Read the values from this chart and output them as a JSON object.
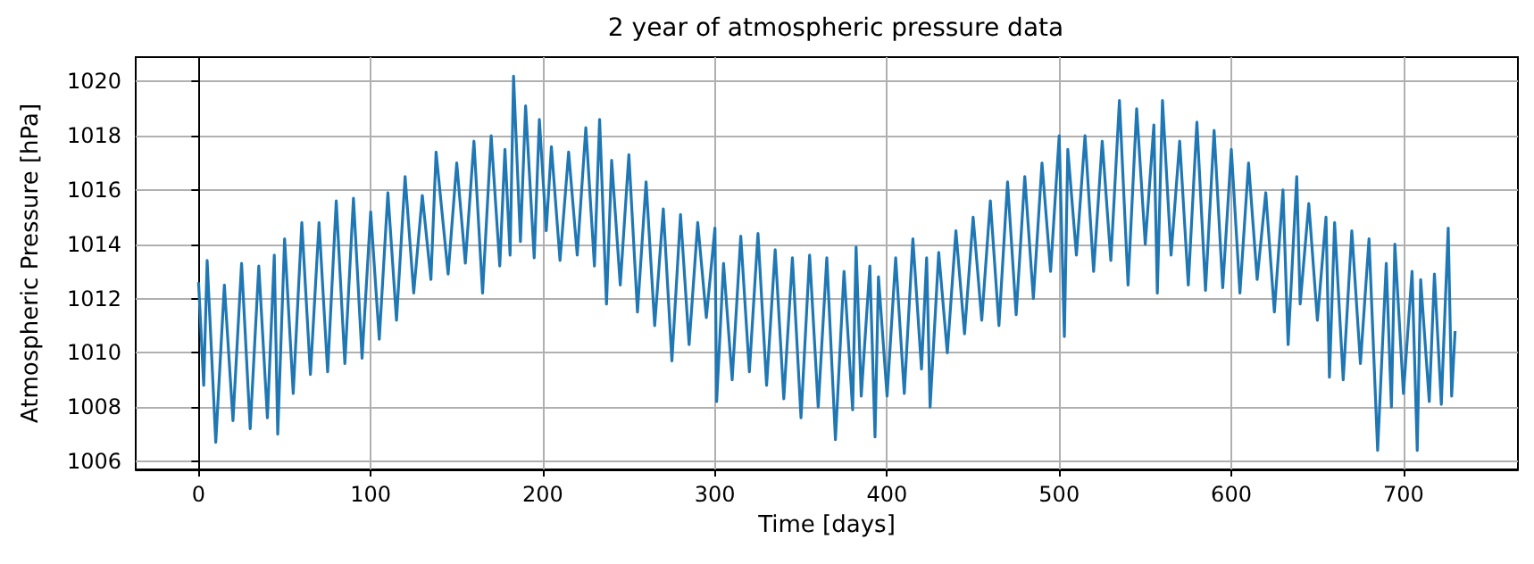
{
  "chart_data": {
    "type": "line",
    "title": "2 year of atmospheric pressure data",
    "xlabel": "Time [days]",
    "ylabel": "Atmospheric Pressure [hPa]",
    "x": [
      0,
      3,
      5,
      10,
      15,
      20,
      25,
      30,
      35,
      40,
      44,
      46,
      50,
      55,
      60,
      65,
      70,
      75,
      80,
      85,
      90,
      95,
      100,
      105,
      110,
      115,
      120,
      125,
      130,
      135,
      138,
      145,
      150,
      155,
      160,
      165,
      170,
      175,
      178,
      181,
      183,
      187,
      190,
      195,
      198,
      202,
      205,
      210,
      215,
      220,
      225,
      230,
      233,
      237,
      240,
      245,
      250,
      255,
      260,
      265,
      270,
      275,
      280,
      285,
      290,
      295,
      300,
      301,
      305,
      310,
      315,
      320,
      325,
      330,
      335,
      340,
      345,
      350,
      355,
      360,
      365,
      370,
      375,
      380,
      382,
      385,
      390,
      393,
      395,
      400,
      405,
      410,
      415,
      420,
      423,
      425,
      430,
      435,
      440,
      445,
      450,
      455,
      460,
      465,
      470,
      475,
      480,
      485,
      490,
      495,
      500,
      503,
      505,
      510,
      515,
      520,
      525,
      530,
      535,
      540,
      545,
      550,
      555,
      557,
      560,
      565,
      570,
      575,
      580,
      585,
      590,
      595,
      600,
      605,
      610,
      615,
      620,
      625,
      630,
      633,
      638,
      640,
      645,
      650,
      655,
      657,
      660,
      665,
      670,
      675,
      680,
      685,
      690,
      693,
      695,
      700,
      705,
      708,
      710,
      715,
      718,
      722,
      726,
      728,
      730
    ],
    "values": [
      1012.6,
      1008.8,
      1013.4,
      1006.7,
      1012.5,
      1007.5,
      1013.3,
      1007.2,
      1013.2,
      1007.6,
      1013.6,
      1007.0,
      1014.2,
      1008.5,
      1014.8,
      1009.2,
      1014.8,
      1009.3,
      1015.6,
      1009.6,
      1015.7,
      1009.8,
      1015.2,
      1010.5,
      1015.9,
      1011.2,
      1016.5,
      1012.2,
      1015.8,
      1012.7,
      1017.4,
      1012.9,
      1017.0,
      1013.3,
      1017.8,
      1012.2,
      1018.0,
      1013.2,
      1017.5,
      1013.6,
      1020.2,
      1014.1,
      1019.1,
      1013.5,
      1018.6,
      1014.5,
      1017.6,
      1013.4,
      1017.4,
      1013.6,
      1018.3,
      1013.2,
      1018.6,
      1011.8,
      1017.1,
      1012.5,
      1017.3,
      1011.5,
      1016.3,
      1011.0,
      1015.3,
      1009.7,
      1015.1,
      1010.3,
      1014.8,
      1011.3,
      1014.6,
      1008.2,
      1013.3,
      1009.0,
      1014.3,
      1009.3,
      1014.4,
      1008.8,
      1013.8,
      1008.3,
      1013.5,
      1007.6,
      1013.6,
      1008.0,
      1013.5,
      1006.8,
      1013.0,
      1007.9,
      1013.9,
      1008.4,
      1013.2,
      1006.9,
      1012.8,
      1008.4,
      1013.5,
      1008.5,
      1014.2,
      1009.4,
      1013.5,
      1008.0,
      1013.7,
      1010.0,
      1014.5,
      1010.7,
      1015.0,
      1011.2,
      1015.6,
      1011.0,
      1016.3,
      1011.4,
      1016.5,
      1012.0,
      1017.0,
      1013.0,
      1018.0,
      1010.6,
      1017.5,
      1013.6,
      1018.0,
      1013.0,
      1017.8,
      1013.4,
      1019.3,
      1012.5,
      1019.0,
      1014.0,
      1018.4,
      1012.2,
      1019.3,
      1013.6,
      1017.8,
      1012.5,
      1018.5,
      1012.3,
      1018.2,
      1012.4,
      1017.5,
      1012.2,
      1017.0,
      1012.7,
      1015.9,
      1011.5,
      1016.0,
      1010.3,
      1016.5,
      1011.8,
      1015.5,
      1011.2,
      1015.0,
      1009.1,
      1014.8,
      1009.0,
      1014.5,
      1009.6,
      1014.2,
      1006.4,
      1013.3,
      1008.0,
      1014.0,
      1008.5,
      1013.0,
      1006.4,
      1012.7,
      1008.2,
      1012.9,
      1008.1,
      1014.6,
      1008.4,
      1010.8
    ],
    "color": "#1f77b4",
    "xlim": [
      -36.5,
      766.5
    ],
    "ylim": [
      1005.7,
      1020.9
    ],
    "xticks": [
      0,
      100,
      200,
      300,
      400,
      500,
      600,
      700
    ],
    "yticks": [
      1006,
      1008,
      1010,
      1012,
      1014,
      1016,
      1018,
      1020
    ],
    "grid": true,
    "marker": "none",
    "line_style": "solid"
  }
}
